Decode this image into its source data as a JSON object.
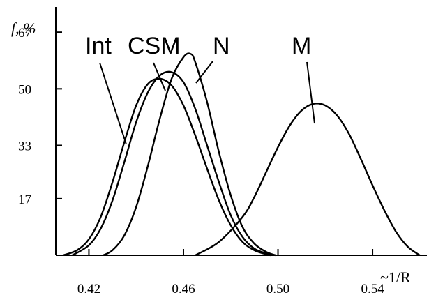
{
  "chart_data": {
    "type": "line",
    "title": "",
    "ylabel": "f, %",
    "xlabel": "~1/R",
    "xlim": [
      0.406,
      0.563
    ],
    "ylim": [
      0,
      75
    ],
    "x_ticks": [
      0.42,
      0.46,
      0.5,
      0.54
    ],
    "x_tick_labels": [
      "0.42",
      "0.46",
      "0.50",
      "0.54"
    ],
    "y_ticks": [
      17,
      33,
      50,
      67
    ],
    "y_tick_labels": [
      "17",
      "33",
      "50",
      "67"
    ],
    "grid": false,
    "legend": "none",
    "series": [
      {
        "name": "Int",
        "x": [
          0.409,
          0.415,
          0.42,
          0.425,
          0.43,
          0.435,
          0.44,
          0.445,
          0.45,
          0.455,
          0.46,
          0.465,
          0.47,
          0.475,
          0.48,
          0.485,
          0.49,
          0.495,
          0.497
        ],
        "y": [
          0,
          1.5,
          4.8,
          11.5,
          22,
          34,
          45,
          51.5,
          53,
          51,
          45,
          36,
          26,
          16.5,
          9,
          4,
          1.5,
          0.3,
          0
        ]
      },
      {
        "name": "CSM",
        "x": [
          0.413,
          0.42,
          0.425,
          0.43,
          0.435,
          0.44,
          0.445,
          0.45,
          0.455,
          0.46,
          0.465,
          0.47,
          0.475,
          0.48,
          0.485,
          0.49,
          0.495,
          0.499
        ],
        "y": [
          0,
          3,
          8,
          16.5,
          28,
          40,
          49,
          54,
          55,
          52,
          44,
          33,
          22,
          12,
          5.5,
          2,
          0.6,
          0
        ]
      },
      {
        "name": "N",
        "x": [
          0.426,
          0.43,
          0.435,
          0.44,
          0.445,
          0.45,
          0.455,
          0.46,
          0.463,
          0.465,
          0.47,
          0.475,
          0.48,
          0.485,
          0.49,
          0.495,
          0.499
        ],
        "y": [
          0,
          1.5,
          6,
          14.5,
          27,
          41,
          53,
          59.5,
          60.5,
          58,
          46,
          31,
          18,
          8.5,
          3.5,
          1,
          0
        ]
      },
      {
        "name": "M",
        "x": [
          0.465,
          0.475,
          0.485,
          0.49,
          0.495,
          0.5,
          0.505,
          0.51,
          0.515,
          0.52,
          0.525,
          0.53,
          0.535,
          0.54,
          0.545,
          0.55,
          0.555,
          0.56
        ],
        "y": [
          0,
          4,
          11.5,
          17.5,
          25,
          32.5,
          39,
          43.5,
          45.5,
          45,
          42,
          36.5,
          29,
          21,
          13.5,
          7,
          2.5,
          0
        ]
      }
    ],
    "series_labels": [
      "Int",
      "CSM",
      "N",
      "M"
    ]
  }
}
